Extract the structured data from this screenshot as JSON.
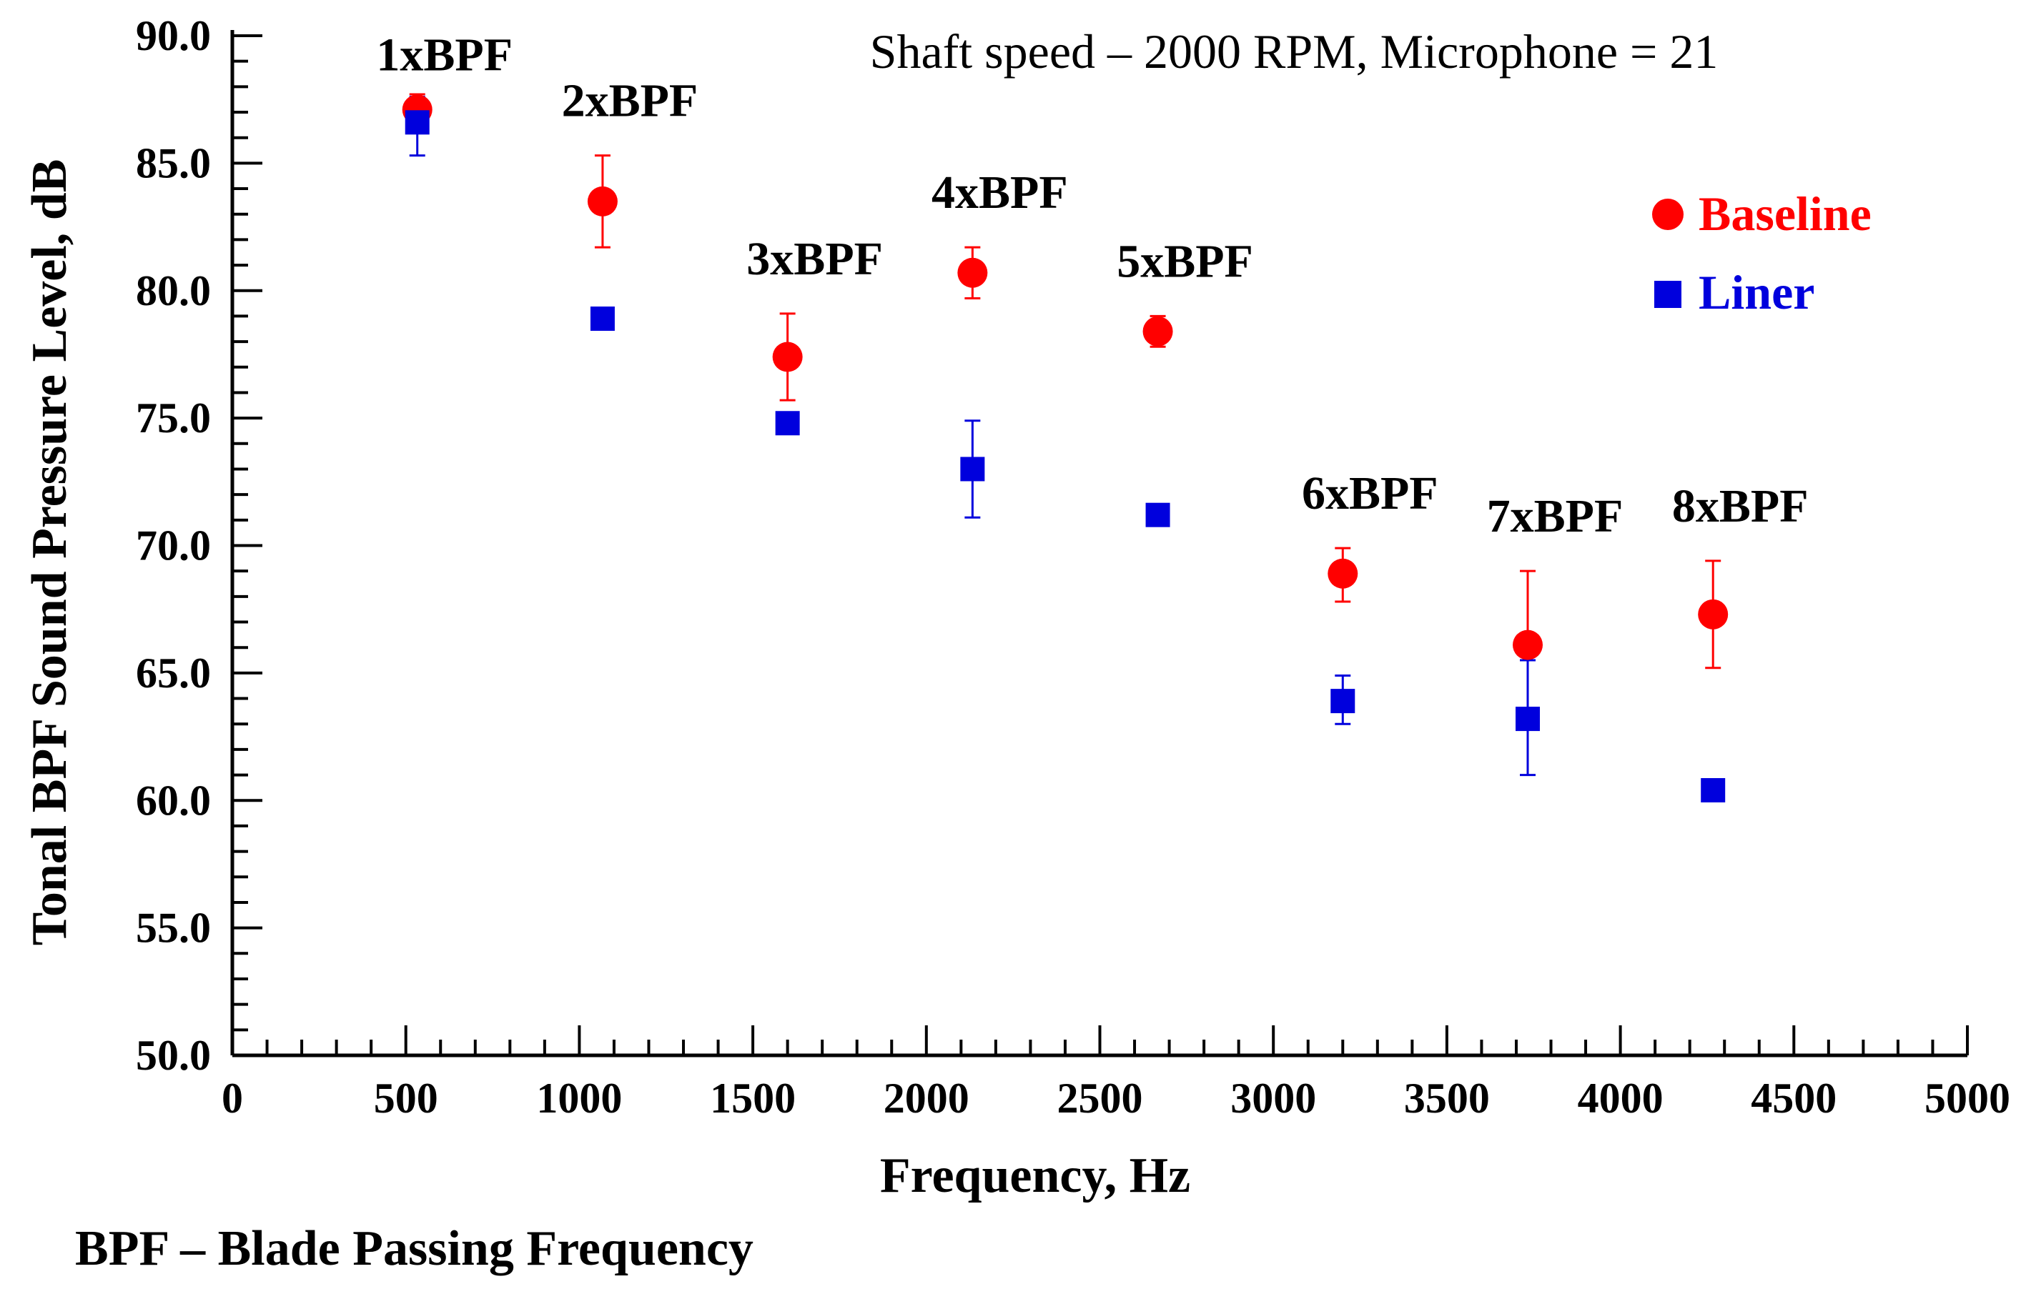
{
  "chart_data": {
    "type": "scatter",
    "subtitle": "Shaft speed – 2000 RPM, Microphone = 21",
    "xlabel": "Frequency, Hz",
    "ylabel": "Tonal  BPF Sound Pressure Level, dB",
    "footnote": "BPF – Blade Passing Frequency",
    "xlim": [
      0,
      5000
    ],
    "ylim": [
      50,
      90
    ],
    "x_ticks": [
      0,
      500,
      1000,
      1500,
      2000,
      2500,
      3000,
      3500,
      4000,
      4500,
      5000
    ],
    "x_tick_labels": [
      "0",
      "500",
      "1000",
      "1500",
      "2000",
      "2500",
      "3000",
      "3500",
      "4000",
      "4500",
      "5000"
    ],
    "y_ticks": [
      50,
      55,
      60,
      65,
      70,
      75,
      80,
      85,
      90
    ],
    "y_tick_labels": [
      "50.0",
      "55.0",
      "60.0",
      "65.0",
      "70.0",
      "75.0",
      "80.0",
      "85.0",
      "90.0"
    ],
    "legend_position": "top-right",
    "harmonic_labels": [
      {
        "text": "1xBPF",
        "x": 533,
        "y": 87.1
      },
      {
        "text": "2xBPF",
        "x": 1067,
        "y": 85.3
      },
      {
        "text": "3xBPF",
        "x": 1600,
        "y": 79.1
      },
      {
        "text": "4xBPF",
        "x": 2133,
        "y": 81.7
      },
      {
        "text": "5xBPF",
        "x": 2667,
        "y": 79.0
      },
      {
        "text": "6xBPF",
        "x": 3200,
        "y": 69.9
      },
      {
        "text": "7xBPF",
        "x": 3733,
        "y": 69.0
      },
      {
        "text": "8xBPF",
        "x": 4267,
        "y": 69.4
      }
    ],
    "series": [
      {
        "name": "Baseline",
        "marker": "circle",
        "color": "#ff0000",
        "x": [
          533,
          1067,
          1600,
          2133,
          2667,
          3200,
          3733,
          4267
        ],
        "y": [
          87.1,
          83.5,
          77.4,
          80.7,
          78.4,
          68.9,
          66.1,
          67.3
        ],
        "err_low": [
          86.8,
          81.7,
          75.7,
          79.7,
          77.8,
          67.8,
          63.6,
          65.2
        ],
        "err_high": [
          87.7,
          85.3,
          79.1,
          81.7,
          79.0,
          69.9,
          69.0,
          69.4
        ]
      },
      {
        "name": "Liner",
        "marker": "square",
        "color": "#0000dd",
        "x": [
          533,
          1067,
          1600,
          2133,
          2667,
          3200,
          3733,
          4267
        ],
        "y": [
          86.6,
          78.9,
          74.8,
          73.0,
          71.2,
          63.9,
          63.2,
          60.4
        ],
        "err_low": [
          85.3,
          78.9,
          74.8,
          71.1,
          71.2,
          63.0,
          61.0,
          60.4
        ],
        "err_high": [
          87.6,
          78.9,
          74.8,
          74.9,
          71.2,
          64.9,
          65.5,
          60.4
        ]
      }
    ]
  }
}
